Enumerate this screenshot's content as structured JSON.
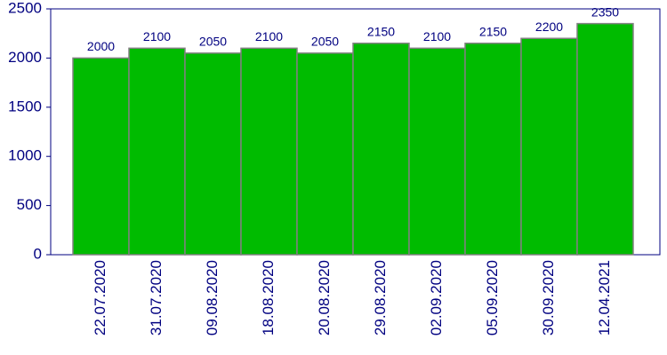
{
  "chart_data": {
    "type": "bar",
    "categories": [
      "22.07.2020",
      "31.07.2020",
      "09.08.2020",
      "18.08.2020",
      "20.08.2020",
      "29.08.2020",
      "02.09.2020",
      "05.09.2020",
      "30.09.2020",
      "12.04.2021"
    ],
    "values": [
      2000,
      2100,
      2050,
      2100,
      2050,
      2150,
      2100,
      2150,
      2200,
      2350
    ],
    "color": "#00bb00",
    "ylim": [
      0,
      2500
    ],
    "yticks": [
      0,
      500,
      1000,
      1500,
      2000,
      2500
    ],
    "grid": false
  }
}
